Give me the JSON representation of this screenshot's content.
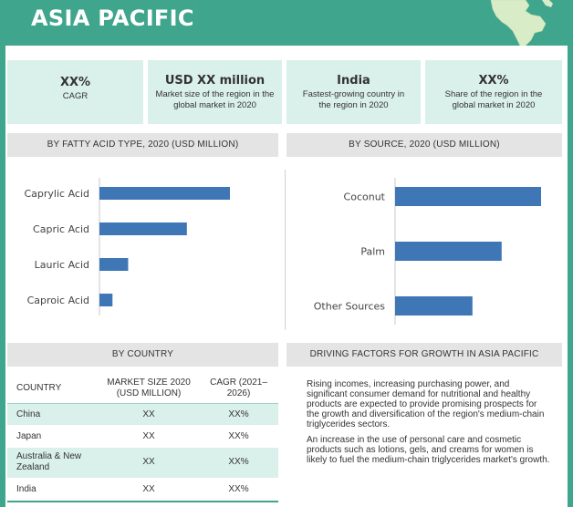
{
  "header": {
    "title": "ASIA PACIFIC"
  },
  "kpis": [
    {
      "value": "XX%",
      "label": "CAGR"
    },
    {
      "value": "USD XX million",
      "label": "Market size of the region in the global market in 2020"
    },
    {
      "value": "India",
      "label": "Fastest-growing country in the region in 2020"
    },
    {
      "value": "XX%",
      "label": "Share of the region in the global market in 2020"
    }
  ],
  "sections": {
    "fatty_acid": "BY FATTY ACID TYPE, 2020 (USD MILLION)",
    "source": "BY SOURCE, 2020 (USD MILLION)",
    "country": "BY COUNTRY",
    "drivers": "DRIVING FACTORS FOR GROWTH IN ASIA PACIFIC"
  },
  "colors": {
    "accent": "#3fa58c",
    "bar": "#3f76b5",
    "tint": "#daf0ea",
    "section_bg": "#e4e4e4"
  },
  "chart_data": [
    {
      "type": "bar",
      "orientation": "horizontal",
      "title": "BY FATTY ACID TYPE, 2020 (USD MILLION)",
      "categories": [
        "Caprylic Acid",
        "Capric Acid",
        "Lauric Acid",
        "Caproic Acid"
      ],
      "values": [
        100,
        67,
        22,
        10
      ],
      "xlim": [
        0,
        100
      ],
      "grid": false,
      "legend": "none"
    },
    {
      "type": "bar",
      "orientation": "horizontal",
      "title": "BY SOURCE, 2020 (USD MILLION)",
      "categories": [
        "Coconut",
        "Palm",
        "Other Sources"
      ],
      "values": [
        100,
        73,
        53
      ],
      "xlim": [
        0,
        100
      ],
      "grid": false,
      "legend": "none"
    }
  ],
  "country_table": {
    "headers": [
      "COUNTRY",
      "MARKET SIZE 2020 (USD MILLION)",
      "CAGR (2021–2026)"
    ],
    "rows": [
      {
        "country": "China",
        "size": "XX",
        "cagr": "XX%"
      },
      {
        "country": "Japan",
        "size": "XX",
        "cagr": "XX%"
      },
      {
        "country": "Australia & New Zealand",
        "size": "XX",
        "cagr": "XX%"
      },
      {
        "country": "India",
        "size": "XX",
        "cagr": "XX%"
      }
    ]
  },
  "drivers": [
    "Rising incomes, increasing purchasing power, and significant consumer demand for nutritional and healthy products are expected to provide promising prospects for the growth and diversification of the region's medium-chain triglycerides sectors.",
    "An increase in the use of personal care and cosmetic products such as lotions, gels, and creams for women is likely to fuel the medium-chain triglycerides market's growth."
  ]
}
